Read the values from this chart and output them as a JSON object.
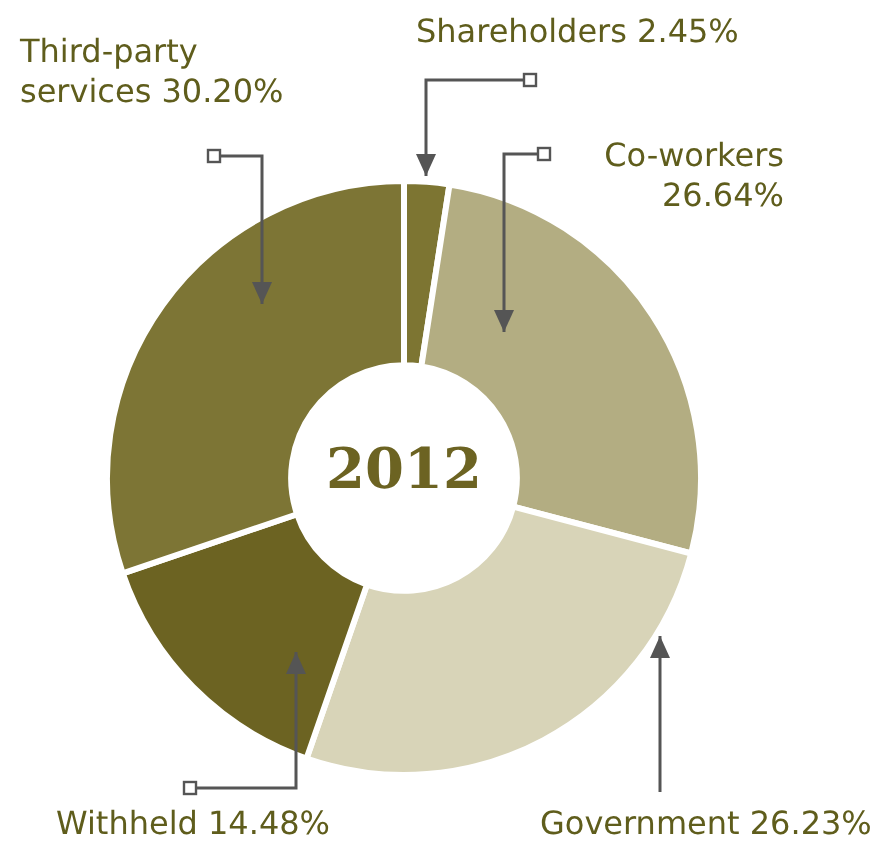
{
  "chart_data": {
    "type": "donut",
    "title": "2012",
    "categories": [
      "Shareholders",
      "Co-workers",
      "Government",
      "Withheld",
      "Third-party services"
    ],
    "values": [
      2.45,
      26.64,
      26.23,
      14.48,
      30.2
    ],
    "value_labels": [
      "2.45%",
      "26.64%",
      "26.23%",
      "14.48%",
      "30.20%"
    ],
    "colors": [
      "#7d7532",
      "#b3ad82",
      "#d8d4b8",
      "#6c6322",
      "#7d7535"
    ]
  }
}
